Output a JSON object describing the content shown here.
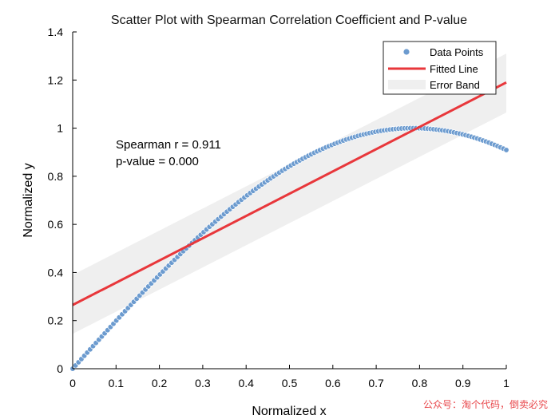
{
  "chart_data": {
    "type": "scatter",
    "title": "Scatter Plot with Spearman Correlation Coefficient and P-value",
    "xlabel": "Normalized x",
    "ylabel": "Normalized y",
    "xlim": [
      0,
      1
    ],
    "ylim": [
      0,
      1.4
    ],
    "xticks": [
      0,
      0.1,
      0.2,
      0.3,
      0.4,
      0.5,
      0.6,
      0.7,
      0.8,
      0.9,
      1
    ],
    "xtick_labels": [
      "0",
      "0.1",
      "0.2",
      "0.3",
      "0.4",
      "0.5",
      "0.6",
      "0.7",
      "0.8",
      "0.9",
      "1"
    ],
    "yticks": [
      0,
      0.2,
      0.4,
      0.6,
      0.8,
      1,
      1.2,
      1.4
    ],
    "ytick_labels": [
      "0",
      "0.2",
      "0.4",
      "0.6",
      "0.8",
      "1",
      "1.2",
      "1.4"
    ],
    "grid": false,
    "series": [
      {
        "name": "Data Points",
        "kind": "scatter",
        "color": "#6c9bcf",
        "curve": "y = sin(2.0 * x)",
        "x_range": [
          0,
          1
        ],
        "n_points": 150
      },
      {
        "name": "Fitted Line",
        "kind": "line",
        "color": "#e8373b",
        "x": [
          0,
          1
        ],
        "y": [
          0.265,
          1.19
        ]
      },
      {
        "name": "Error Band",
        "kind": "band",
        "color": "#efefef",
        "x": [
          0,
          1
        ],
        "y_low": [
          0.145,
          1.065
        ],
        "y_high": [
          0.39,
          1.31
        ]
      }
    ],
    "annotations": [
      "Spearman r = 0.911",
      "p-value = 0.000"
    ],
    "legend": {
      "position": "top-right",
      "entries": [
        "Data Points",
        "Fitted Line",
        "Error Band"
      ]
    }
  },
  "watermark": "公众号：淘个代码，倒卖必究"
}
